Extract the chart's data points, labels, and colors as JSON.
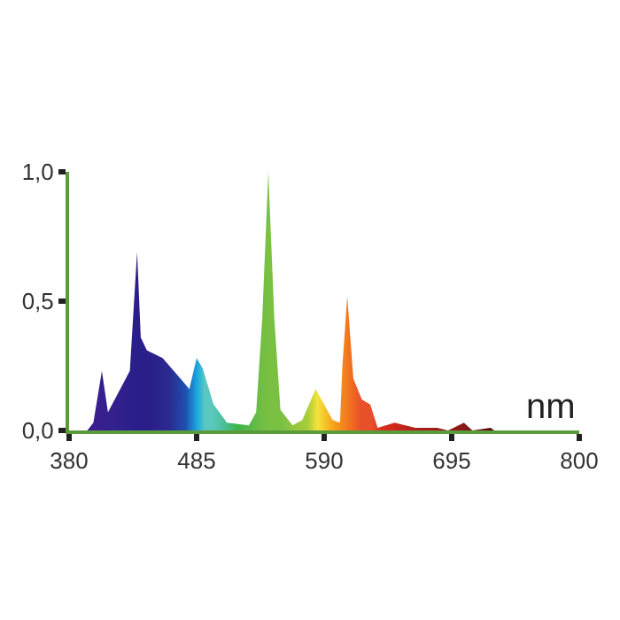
{
  "chart_data": {
    "type": "area",
    "xlabel": "nm",
    "xlim": [
      380,
      800
    ],
    "xticks": [
      380,
      485,
      590,
      695,
      800
    ],
    "ylim": [
      0,
      1.0
    ],
    "yticks": [
      {
        "value": 0,
        "label": "0,0"
      },
      {
        "value": 0.5,
        "label": "0,5"
      },
      {
        "value": 1.0,
        "label": "1,0"
      }
    ],
    "series": [
      {
        "x": [
          395,
          400,
          407,
          412,
          430,
          436,
          439,
          444,
          457,
          470,
          479,
          485,
          490,
          499,
          510,
          528,
          534,
          539,
          544,
          549,
          554,
          564,
          572,
          583,
          597,
          603,
          605,
          609,
          614,
          621,
          628,
          634,
          648,
          665,
          683,
          692,
          705,
          712,
          727,
          730
        ],
        "values": [
          0,
          0.03,
          0.23,
          0.07,
          0.23,
          0.69,
          0.36,
          0.31,
          0.28,
          0.21,
          0.16,
          0.28,
          0.24,
          0.1,
          0.03,
          0.02,
          0.07,
          0.43,
          1.0,
          0.43,
          0.08,
          0.02,
          0.04,
          0.16,
          0.04,
          0.03,
          0.25,
          0.52,
          0.2,
          0.12,
          0.1,
          0.01,
          0.03,
          0.01,
          0.01,
          0,
          0.03,
          0,
          0.01,
          0
        ],
        "colors": [
          "#3b1d8f",
          "#3b1d8f",
          "#35208e",
          "#35208e",
          "#2a1f8a",
          "#2a1f8a",
          "#2a1f8a",
          "#2a1f8a",
          "#2a2a90",
          "#1f4fb0",
          "#1ba9e0",
          "#5bc8c0",
          "#5bc8c0",
          "#4cbf9a",
          "#3db44a",
          "#6ebe45",
          "#7ac143",
          "#7ac143",
          "#7ac143",
          "#86c340",
          "#95c73d",
          "#a6cc3a",
          "#f3e33a",
          "#f7a81b",
          "#f07020",
          "#eb5a25",
          "#e8502a",
          "#e8502a",
          "#e8502a",
          "#d9301e",
          "#d32b1c",
          "#c8261b",
          "#b0201a",
          "#9a1c1a",
          "#8b1a1a",
          "#7a1414",
          "#5a0a0a",
          "#5a0a0a",
          "#5a0a0a",
          "#5a0a0a"
        ]
      }
    ]
  }
}
